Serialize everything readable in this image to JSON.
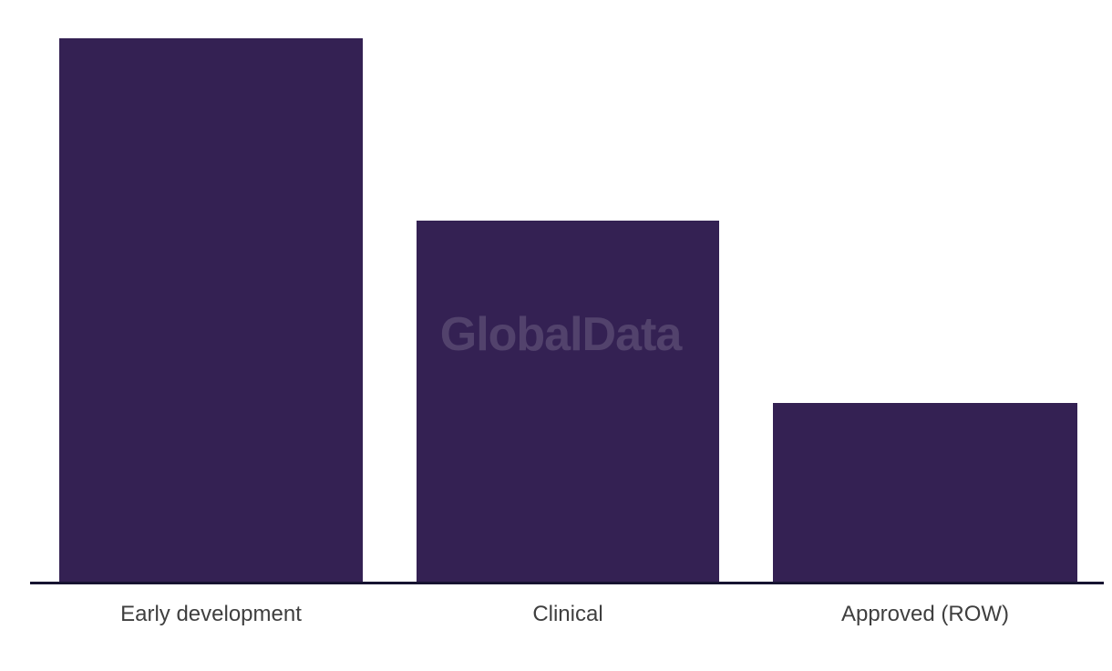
{
  "page": {
    "background_color": "#ffffff"
  },
  "watermark": {
    "text": "GlobalData",
    "color": "rgba(255,255,255,0.15)"
  },
  "axis": {
    "line_color": "#171431"
  },
  "chart_data": {
    "type": "bar",
    "categories": [
      "Early development",
      "Clinical",
      "Approved (ROW)"
    ],
    "values": [
      3.02,
      2.01,
      1.0
    ],
    "title": "",
    "xlabel": "",
    "ylabel": "",
    "ylim": [
      0,
      3.23
    ],
    "grid": false,
    "legend": false,
    "bar_color": "#342153",
    "label_color": "#3f3f3f"
  }
}
